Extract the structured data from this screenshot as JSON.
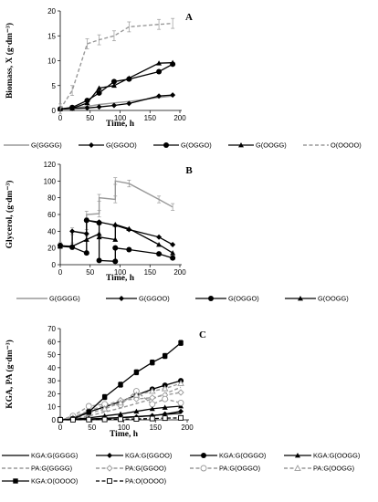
{
  "colors": {
    "black": "#000000",
    "gray": "#999999",
    "darkgray": "#777777"
  },
  "chart_data": [
    {
      "type": "line",
      "panel_label": "A",
      "xlabel": "Time, h",
      "ylabel": "Biomass, X (g·dm⁻³)",
      "xlim": [
        0,
        200
      ],
      "ylim": [
        0,
        20
      ],
      "xticks": [
        "0",
        "50",
        "100",
        "150",
        "200"
      ],
      "yticks": [
        "0",
        "5",
        "10",
        "15",
        "20"
      ],
      "grid": false,
      "legend_position": "below",
      "series": [
        {
          "name": "G(GGGG)",
          "color": "#999999",
          "style": "solid",
          "marker": "none",
          "x": [
            0,
            20,
            45,
            65,
            90,
            115,
            165,
            188
          ],
          "y": [
            0.3,
            0.5,
            0.8,
            1.2,
            1.5,
            1.8,
            2.6,
            2.9
          ]
        },
        {
          "name": "G(GGOO)",
          "color": "#000000",
          "style": "solid",
          "marker": "diamond",
          "x": [
            0,
            20,
            45,
            65,
            90,
            115,
            165,
            188
          ],
          "y": [
            0.3,
            0.4,
            0.5,
            0.7,
            1.0,
            1.4,
            2.9,
            3.1
          ]
        },
        {
          "name": "G(OGGO)",
          "color": "#000000",
          "style": "solid",
          "marker": "circle",
          "x": [
            0,
            20,
            45,
            65,
            90,
            115,
            165,
            188
          ],
          "y": [
            0.3,
            0.6,
            2.0,
            3.5,
            5.8,
            6.3,
            7.8,
            9.3
          ]
        },
        {
          "name": "G(OOGG)",
          "color": "#000000",
          "style": "solid",
          "marker": "triangle",
          "x": [
            0,
            20,
            45,
            65,
            90,
            115,
            165,
            188
          ],
          "y": [
            0.3,
            0.4,
            1.5,
            4.5,
            5.0,
            6.5,
            9.5,
            9.6
          ]
        },
        {
          "name": "O(OOOO)",
          "color": "#999999",
          "style": "dashed",
          "marker": "none",
          "x": [
            0,
            20,
            45,
            65,
            90,
            115,
            165,
            188
          ],
          "y": [
            0.3,
            4.0,
            13.4,
            14.2,
            15.0,
            16.8,
            17.3,
            17.5
          ],
          "error": 1.0
        }
      ]
    },
    {
      "type": "line",
      "panel_label": "B",
      "xlabel": "Time, h",
      "ylabel": "Glycerol, (g·dm⁻³)",
      "xlim": [
        0,
        200
      ],
      "ylim": [
        0,
        120
      ],
      "xticks": [
        "0",
        "50",
        "100",
        "150",
        "200"
      ],
      "yticks": [
        "0",
        "20",
        "40",
        "60",
        "80",
        "100",
        "120"
      ],
      "grid": false,
      "legend_position": "below",
      "series": [
        {
          "name": "G(GGGG)",
          "color": "#999999",
          "style": "solid",
          "marker": "none",
          "x": [
            0,
            20,
            20,
            44,
            44,
            65,
            65,
            92,
            92,
            115,
            165,
            188
          ],
          "y": [
            23,
            22,
            40,
            38,
            60,
            61,
            80,
            78,
            100,
            97,
            78,
            69
          ],
          "error": 4
        },
        {
          "name": "G(GGOO)",
          "color": "#000000",
          "style": "solid",
          "marker": "diamond",
          "x": [
            0,
            20,
            20,
            44,
            44,
            65,
            92,
            115,
            165,
            188
          ],
          "y": [
            22,
            21,
            40,
            37,
            53,
            51,
            47,
            42,
            33,
            24
          ]
        },
        {
          "name": "G(OGGO)",
          "color": "#000000",
          "style": "solid",
          "marker": "circle",
          "x": [
            0,
            20,
            44,
            44,
            65,
            65,
            92,
            92,
            115,
            165,
            188
          ],
          "y": [
            23,
            21,
            14,
            53,
            50,
            5,
            4,
            20,
            18,
            13,
            8
          ]
        },
        {
          "name": "G(OOGG)",
          "color": "#000000",
          "style": "solid",
          "marker": "triangle",
          "x": [
            0,
            20,
            44,
            65,
            65,
            92,
            92,
            115,
            165,
            188
          ],
          "y": [
            22,
            22,
            30,
            37,
            33,
            30,
            48,
            43,
            24,
            14
          ]
        }
      ]
    },
    {
      "type": "line",
      "panel_label": "C",
      "xlabel": "Time, h",
      "ylabel": "KGA, PA (g·dm⁻³)",
      "xlim": [
        0,
        200
      ],
      "ylim": [
        0,
        70
      ],
      "xticks": [
        "0",
        "50",
        "100",
        "150",
        "200"
      ],
      "yticks": [
        "0",
        "10",
        "20",
        "30",
        "40",
        "50",
        "60",
        "70"
      ],
      "grid": false,
      "legend_position": "below",
      "series": [
        {
          "name": "KGA:G(GGGG)",
          "color": "#000000",
          "style": "solid",
          "marker": "none",
          "x": [
            0,
            20,
            45,
            70,
            95,
            120,
            145,
            165,
            190
          ],
          "y": [
            0,
            0.3,
            0.7,
            1.2,
            1.8,
            2.5,
            3.3,
            4.2,
            5.0
          ]
        },
        {
          "name": "KGA:G(GGOO)",
          "color": "#000000",
          "style": "solid",
          "marker": "diamond",
          "x": [
            0,
            20,
            45,
            70,
            95,
            120,
            145,
            165,
            190
          ],
          "y": [
            0,
            0.3,
            0.5,
            1.0,
            1.6,
            2.3,
            3.2,
            4.5,
            6.5
          ]
        },
        {
          "name": "KGA:G(OGGO)",
          "color": "#000000",
          "style": "solid",
          "marker": "circle",
          "x": [
            0,
            20,
            45,
            70,
            95,
            120,
            145,
            165,
            190
          ],
          "y": [
            0,
            1.5,
            6.0,
            10.0,
            14.0,
            19.0,
            23.5,
            26.5,
            30.0
          ]
        },
        {
          "name": "KGA:G(OOGG)",
          "color": "#000000",
          "style": "solid",
          "marker": "triangle",
          "x": [
            0,
            20,
            45,
            70,
            95,
            120,
            145,
            165,
            190
          ],
          "y": [
            0,
            0.5,
            1.5,
            3.0,
            4.5,
            6.5,
            8.5,
            9.5,
            10.5
          ]
        },
        {
          "name": "PA:G(GGGG)",
          "color": "#999999",
          "style": "dashed",
          "marker": "none",
          "x": [
            0,
            20,
            45,
            70,
            95,
            120,
            145,
            165,
            190
          ],
          "y": [
            0,
            1.0,
            3.0,
            6.0,
            9.0,
            12.5,
            16.0,
            20.0,
            25.0
          ]
        },
        {
          "name": "PA:G(GGOO)",
          "color": "#999999",
          "style": "dashed",
          "marker": "diamond-open",
          "x": [
            0,
            20,
            45,
            70,
            95,
            120,
            145,
            165,
            190
          ],
          "y": [
            0,
            2.0,
            7.0,
            11.0,
            15.0,
            16.0,
            17.0,
            19.0,
            21.0
          ]
        },
        {
          "name": "PA:G(OGGO)",
          "color": "#999999",
          "style": "dashed",
          "marker": "circle-open",
          "x": [
            0,
            20,
            45,
            70,
            95,
            120,
            145,
            165,
            190
          ],
          "y": [
            0,
            3.0,
            10.5,
            12.0,
            11.5,
            22.0,
            12.0,
            16.0,
            13.0
          ]
        },
        {
          "name": "PA:G(OOGG)",
          "color": "#999999",
          "style": "dashed",
          "marker": "triangle-open",
          "x": [
            0,
            20,
            45,
            70,
            95,
            120,
            145,
            165,
            190
          ],
          "y": [
            0,
            1.5,
            5.0,
            8.5,
            13.0,
            19.0,
            22.0,
            24.0,
            28.0
          ]
        },
        {
          "name": "KGA:O(OOOO)",
          "color": "#000000",
          "style": "solid",
          "marker": "square",
          "x": [
            0,
            20,
            45,
            70,
            95,
            120,
            145,
            165,
            190
          ],
          "y": [
            0,
            0.5,
            6.0,
            17.5,
            27.0,
            36.5,
            44.0,
            49.0,
            59.0
          ],
          "error": 2
        },
        {
          "name": "PA:O(OOOO)",
          "color": "#000000",
          "style": "dashed",
          "marker": "square-open",
          "x": [
            0,
            20,
            45,
            70,
            95,
            120,
            145,
            165,
            190
          ],
          "y": [
            0,
            0.1,
            0.2,
            0.3,
            0.5,
            0.7,
            1.0,
            1.3,
            1.5
          ]
        }
      ]
    }
  ]
}
